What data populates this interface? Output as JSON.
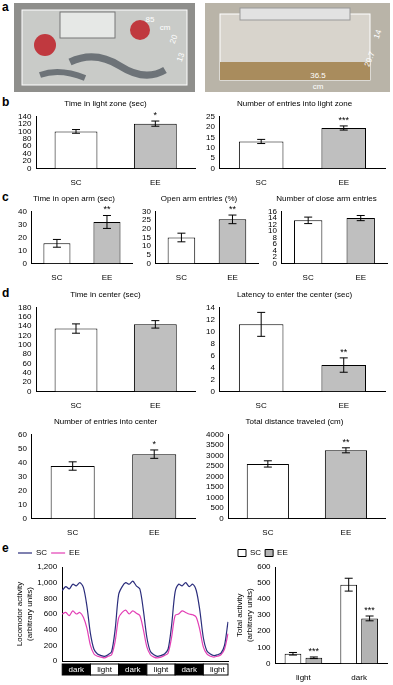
{
  "photos": {
    "panel": "a",
    "images": [
      {
        "labels": [
          "85",
          "cm",
          "20",
          "13"
        ]
      },
      {
        "labels": [
          "36.5",
          "cm",
          "20.7",
          "14"
        ]
      }
    ]
  },
  "chart_data": [
    {
      "type": "bar",
      "panel": "b",
      "title": "Time in light zone (sec)",
      "categories": [
        "SC",
        "EE"
      ],
      "values": [
        100,
        121
      ],
      "errors": [
        5,
        7
      ],
      "colors": [
        "#ffffff",
        "#bfbfbf"
      ],
      "ylim": [
        0,
        140
      ],
      "yticks": [
        0,
        20,
        40,
        60,
        80,
        100,
        120,
        140
      ],
      "grid": false,
      "annotations": [
        {
          "category": "EE",
          "text": "*"
        }
      ]
    },
    {
      "type": "bar",
      "title": "Number of entries into light zone",
      "categories": [
        "SC",
        "EE"
      ],
      "values": [
        13,
        19.5
      ],
      "errors": [
        1,
        1
      ],
      "colors": [
        "#ffffff",
        "#bfbfbf"
      ],
      "ylim": [
        0,
        25
      ],
      "yticks": [
        0,
        5,
        10,
        15,
        20,
        25
      ],
      "grid": false,
      "annotations": [
        {
          "category": "EE",
          "text": "***"
        }
      ]
    },
    {
      "type": "bar",
      "panel": "c",
      "title": "Time in open arm (sec)",
      "categories": [
        "SC",
        "EE"
      ],
      "values": [
        15.5,
        32
      ],
      "errors": [
        3,
        5
      ],
      "colors": [
        "#ffffff",
        "#bfbfbf"
      ],
      "ylim": [
        0,
        40
      ],
      "yticks": [
        0,
        10,
        20,
        30,
        40
      ],
      "grid": false,
      "annotations": [
        {
          "category": "EE",
          "text": "**"
        }
      ]
    },
    {
      "type": "bar",
      "title": "Open arm entries (%)",
      "categories": [
        "SC",
        "EE"
      ],
      "values": [
        15,
        25.5
      ],
      "errors": [
        2.5,
        2.5
      ],
      "colors": [
        "#ffffff",
        "#bfbfbf"
      ],
      "ylim": [
        0,
        30
      ],
      "yticks": [
        0,
        5,
        10,
        15,
        20,
        25,
        30
      ],
      "grid": false,
      "annotations": [
        {
          "category": "EE",
          "text": "**"
        }
      ]
    },
    {
      "type": "bar",
      "title": "Number of close arm entries",
      "categories": [
        "SC",
        "EE"
      ],
      "values": [
        13.3,
        14
      ],
      "errors": [
        1,
        0.8
      ],
      "colors": [
        "#ffffff",
        "#bfbfbf"
      ],
      "ylim": [
        0,
        16
      ],
      "yticks": [
        0,
        2,
        4,
        6,
        8,
        10,
        12,
        14,
        16
      ],
      "grid": false
    },
    {
      "type": "bar",
      "panel": "d",
      "title": "Time in center (sec)",
      "categories": [
        "SC",
        "EE"
      ],
      "values": [
        135,
        144
      ],
      "errors": [
        10,
        8
      ],
      "colors": [
        "#ffffff",
        "#bfbfbf"
      ],
      "ylim": [
        0,
        180
      ],
      "yticks": [
        0,
        20,
        40,
        60,
        80,
        100,
        120,
        140,
        160,
        180
      ],
      "grid": false
    },
    {
      "type": "bar",
      "title": "Latency to enter the center (sec)",
      "categories": [
        "SC",
        "EE"
      ],
      "values": [
        11.2,
        4.4
      ],
      "errors": [
        2,
        1.2
      ],
      "colors": [
        "#ffffff",
        "#bfbfbf"
      ],
      "ylim": [
        0,
        14
      ],
      "yticks": [
        0,
        2,
        4,
        6,
        8,
        10,
        12,
        14
      ],
      "grid": false,
      "annotations": [
        {
          "category": "EE",
          "text": "**"
        }
      ]
    },
    {
      "type": "bar",
      "title": "Number of entries into center",
      "categories": [
        "SC",
        "EE"
      ],
      "values": [
        37.5,
        46
      ],
      "errors": [
        3,
        3
      ],
      "colors": [
        "#ffffff",
        "#bfbfbf"
      ],
      "ylim": [
        0,
        60
      ],
      "yticks": [
        0,
        10,
        20,
        30,
        40,
        50,
        60
      ],
      "grid": false,
      "annotations": [
        {
          "category": "EE",
          "text": "*"
        }
      ]
    },
    {
      "type": "bar",
      "title": "Total distance traveled (cm)",
      "categories": [
        "SC",
        "EE"
      ],
      "values": [
        2600,
        3250
      ],
      "errors": [
        150,
        120
      ],
      "colors": [
        "#ffffff",
        "#bfbfbf"
      ],
      "ylim": [
        0,
        4000
      ],
      "yticks": [
        0,
        500,
        1000,
        1500,
        2000,
        2500,
        3000,
        3500,
        4000
      ],
      "grid": false,
      "annotations": [
        {
          "category": "EE",
          "text": "**"
        }
      ]
    },
    {
      "type": "line",
      "panel": "e",
      "ylabel": [
        "Locomotor activity",
        "(arbitrary units)"
      ],
      "categories": [
        null,
        null,
        null,
        null,
        "dark",
        null,
        null,
        null,
        null,
        null,
        null,
        null,
        "light",
        null,
        null,
        null,
        null,
        null,
        null,
        null,
        "dark",
        null,
        null,
        null,
        null,
        null,
        null,
        null,
        "light",
        null,
        null,
        null,
        null,
        null,
        null,
        null,
        "dark",
        null,
        null,
        null,
        null,
        null,
        null,
        null,
        "light",
        null,
        null,
        null
      ],
      "series": [
        {
          "name": "SC",
          "color": "#2b2d7c",
          "values": [
            900,
            950,
            920,
            980,
            960,
            1000,
            940,
            700,
            350,
            150,
            90,
            70,
            60,
            80,
            120,
            400,
            850,
            950,
            1000,
            980,
            1020,
            960,
            920,
            650,
            300,
            120,
            80,
            60,
            70,
            90,
            150,
            450,
            880,
            980,
            960,
            1000,
            950,
            980,
            900,
            650,
            300,
            130,
            90,
            70,
            80,
            100,
            200,
            500
          ]
        },
        {
          "name": "EE",
          "color": "#e33fb5",
          "values": [
            600,
            620,
            580,
            640,
            600,
            620,
            560,
            420,
            200,
            90,
            60,
            50,
            40,
            60,
            80,
            250,
            550,
            620,
            650,
            600,
            640,
            610,
            580,
            400,
            180,
            80,
            50,
            40,
            50,
            70,
            100,
            300,
            580,
            600,
            640,
            620,
            600,
            590,
            560,
            400,
            180,
            90,
            60,
            50,
            60,
            80,
            150,
            350
          ]
        }
      ],
      "ylim": [
        0,
        1200
      ],
      "yticks": [
        0,
        200,
        400,
        600,
        800,
        {
          "value": 1000,
          "label": "1,000"
        },
        {
          "value": 1200,
          "label": "1,200"
        }
      ],
      "grid": false,
      "legend": "upper left"
    },
    {
      "type": "bar",
      "ylabel": [
        "Total activity",
        "(arbitrary units)"
      ],
      "categories": [
        "light",
        "dark"
      ],
      "series": [
        {
          "name": "SC",
          "color": "#ffffff",
          "values": [
            60,
            490
          ],
          "errors": [
            8,
            40
          ]
        },
        {
          "name": "EE",
          "color": "#b3b3b3",
          "values": [
            35,
            280
          ],
          "errors": [
            5,
            15
          ]
        }
      ],
      "ylim": [
        0,
        600
      ],
      "yticks": [
        0,
        100,
        200,
        300,
        400,
        500,
        600
      ],
      "grid": false,
      "legend": "upper left",
      "annotations": [
        {
          "category": "light",
          "series": "EE",
          "text": "***"
        },
        {
          "category": "dark",
          "series": "EE",
          "text": "***"
        }
      ]
    }
  ]
}
